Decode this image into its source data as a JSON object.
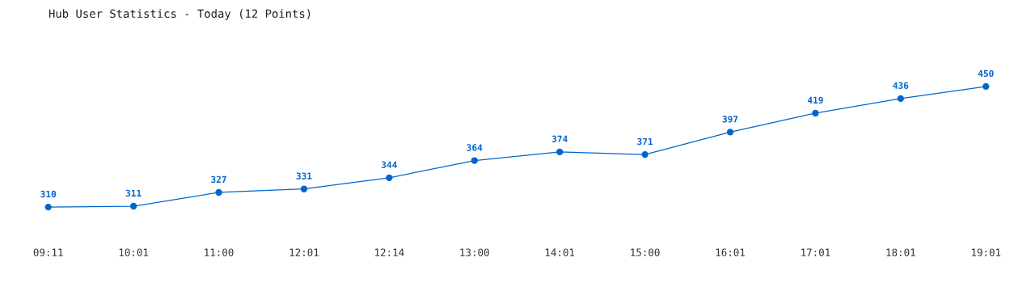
{
  "chart_data": {
    "type": "line",
    "title": "Hub User Statistics - Today (12 Points)",
    "categories": [
      "09:11",
      "10:01",
      "11:00",
      "12:01",
      "12:14",
      "13:00",
      "14:01",
      "15:00",
      "16:01",
      "17:01",
      "18:01",
      "19:01"
    ],
    "series": [
      {
        "color": "#0066cc",
        "values": [
          310,
          311,
          327,
          331,
          344,
          364,
          374,
          371,
          397,
          419,
          436,
          450
        ]
      }
    ],
    "data_labels": true,
    "tick_labels": "x",
    "marker": "circle",
    "line_style": "solid",
    "grid": false,
    "legend": false
  }
}
